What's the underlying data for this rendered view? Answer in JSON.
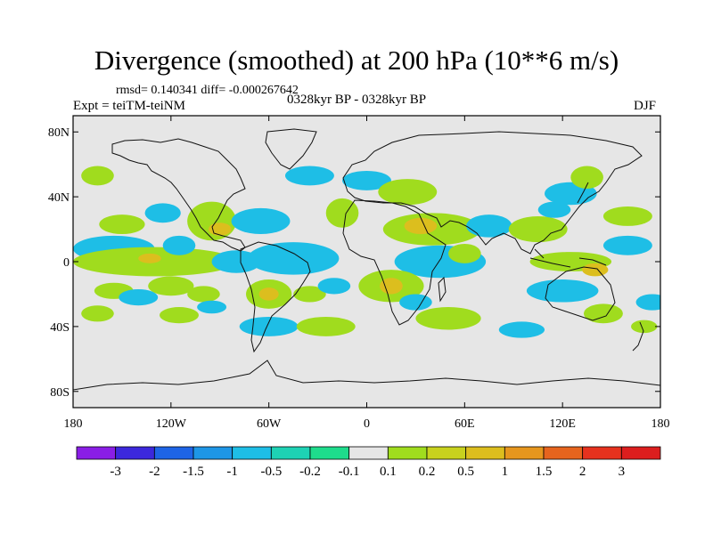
{
  "chart_data": {
    "type": "heatmap",
    "title": "Divergence (smoothed) at 200 hPa (10**6 m/s)",
    "stats": "rmsd= 0.140341 diff= -0.000267642",
    "experiment": "Expt = teiTM-teiNM",
    "period": "0328kyr BP - 0328kyr BP",
    "season": "DJF",
    "x_ticks": [
      "180",
      "120W",
      "60W",
      "0",
      "60E",
      "120E",
      "180"
    ],
    "y_ticks": [
      "80N",
      "40N",
      "0",
      "40S",
      "80S"
    ],
    "xlim": [
      -180,
      180
    ],
    "ylim": [
      -90,
      90
    ],
    "x_tick_values": [
      -180,
      -120,
      -60,
      0,
      60,
      120,
      180
    ],
    "y_tick_values": [
      80,
      40,
      0,
      -40,
      -80
    ],
    "colorbar": {
      "labels": [
        "-3",
        "-2",
        "-1.5",
        "-1",
        "-0.5",
        "-0.2",
        "-0.1",
        "0.1",
        "0.2",
        "0.5",
        "1",
        "1.5",
        "2",
        "3"
      ],
      "colors": [
        "#8a1ee6",
        "#3c28dc",
        "#1e64e6",
        "#1e96e6",
        "#1ebee6",
        "#1ed2b4",
        "#1edc8c",
        "#e6e6e6",
        "#a0dc1e",
        "#c8d21e",
        "#dcbe1e",
        "#e6961e",
        "#e6641e",
        "#e6321e",
        "#dc1e1e"
      ]
    },
    "regions": [
      {
        "level": 0.2,
        "lon": -150,
        "lat": 23,
        "rx": 14,
        "ry": 6
      },
      {
        "level": -0.2,
        "lon": -155,
        "lat": 8,
        "rx": 25,
        "ry": 8
      },
      {
        "level": 0.2,
        "lon": -130,
        "lat": 0,
        "rx": 50,
        "ry": 9
      },
      {
        "level": 0.5,
        "lon": -133,
        "lat": 2,
        "rx": 7,
        "ry": 3
      },
      {
        "level": 0.2,
        "lon": -155,
        "lat": -18,
        "rx": 12,
        "ry": 5
      },
      {
        "level": 0.2,
        "lon": -120,
        "lat": -15,
        "rx": 14,
        "ry": 6
      },
      {
        "level": 0.2,
        "lon": -165,
        "lat": -32,
        "rx": 10,
        "ry": 5
      },
      {
        "level": -0.2,
        "lon": -140,
        "lat": -22,
        "rx": 12,
        "ry": 5
      },
      {
        "level": 0.2,
        "lon": -165,
        "lat": 53,
        "rx": 10,
        "ry": 6
      },
      {
        "level": -0.2,
        "lon": -125,
        "lat": 30,
        "rx": 11,
        "ry": 6
      },
      {
        "level": -0.2,
        "lon": -115,
        "lat": 10,
        "rx": 10,
        "ry": 6
      },
      {
        "level": 0.2,
        "lon": -95,
        "lat": 25,
        "rx": 15,
        "ry": 12
      },
      {
        "level": 0.5,
        "lon": -90,
        "lat": 20,
        "rx": 7,
        "ry": 4
      },
      {
        "level": -0.2,
        "lon": -65,
        "lat": 25,
        "rx": 18,
        "ry": 8
      },
      {
        "level": -0.2,
        "lon": -80,
        "lat": 0,
        "rx": 15,
        "ry": 7
      },
      {
        "level": -0.2,
        "lon": -45,
        "lat": 2,
        "rx": 28,
        "ry": 10
      },
      {
        "level": 0.2,
        "lon": -60,
        "lat": -20,
        "rx": 14,
        "ry": 9
      },
      {
        "level": 0.5,
        "lon": -60,
        "lat": -20,
        "rx": 6,
        "ry": 4
      },
      {
        "level": 0.2,
        "lon": -100,
        "lat": -20,
        "rx": 10,
        "ry": 5
      },
      {
        "level": 0.2,
        "lon": -115,
        "lat": -33,
        "rx": 12,
        "ry": 5
      },
      {
        "level": -0.2,
        "lon": -95,
        "lat": -28,
        "rx": 9,
        "ry": 4
      },
      {
        "level": -0.2,
        "lon": -60,
        "lat": -40,
        "rx": 18,
        "ry": 6
      },
      {
        "level": 0.2,
        "lon": -25,
        "lat": -40,
        "rx": 18,
        "ry": 6
      },
      {
        "level": 0.2,
        "lon": -35,
        "lat": -20,
        "rx": 10,
        "ry": 5
      },
      {
        "level": -0.2,
        "lon": -20,
        "lat": -15,
        "rx": 10,
        "ry": 5
      },
      {
        "level": 0.2,
        "lon": -15,
        "lat": 30,
        "rx": 10,
        "ry": 9
      },
      {
        "level": -0.2,
        "lon": -35,
        "lat": 53,
        "rx": 15,
        "ry": 6
      },
      {
        "level": -0.2,
        "lon": 0,
        "lat": 50,
        "rx": 15,
        "ry": 6
      },
      {
        "level": 0.2,
        "lon": 25,
        "lat": 43,
        "rx": 18,
        "ry": 8
      },
      {
        "level": 0.2,
        "lon": 40,
        "lat": 20,
        "rx": 30,
        "ry": 10
      },
      {
        "level": 0.5,
        "lon": 33,
        "lat": 22,
        "rx": 10,
        "ry": 5
      },
      {
        "level": -0.2,
        "lon": 45,
        "lat": 0,
        "rx": 28,
        "ry": 10
      },
      {
        "level": 0.2,
        "lon": 15,
        "lat": -15,
        "rx": 20,
        "ry": 10
      },
      {
        "level": 0.5,
        "lon": 15,
        "lat": -15,
        "rx": 7,
        "ry": 5
      },
      {
        "level": 0.2,
        "lon": 50,
        "lat": -35,
        "rx": 20,
        "ry": 7
      },
      {
        "level": -0.2,
        "lon": 30,
        "lat": -25,
        "rx": 10,
        "ry": 5
      },
      {
        "level": -0.2,
        "lon": 75,
        "lat": 22,
        "rx": 14,
        "ry": 7
      },
      {
        "level": 0.2,
        "lon": 105,
        "lat": 20,
        "rx": 18,
        "ry": 8
      },
      {
        "level": -0.2,
        "lon": 115,
        "lat": 32,
        "rx": 10,
        "ry": 5
      },
      {
        "level": -0.2,
        "lon": 125,
        "lat": 42,
        "rx": 16,
        "ry": 7
      },
      {
        "level": 0.2,
        "lon": 135,
        "lat": 52,
        "rx": 10,
        "ry": 7
      },
      {
        "level": 0.2,
        "lon": 160,
        "lat": 28,
        "rx": 15,
        "ry": 6
      },
      {
        "level": -0.2,
        "lon": 160,
        "lat": 10,
        "rx": 15,
        "ry": 6
      },
      {
        "level": 0.2,
        "lon": 125,
        "lat": 0,
        "rx": 25,
        "ry": 6
      },
      {
        "level": -0.2,
        "lon": 120,
        "lat": -18,
        "rx": 22,
        "ry": 7
      },
      {
        "level": 0.5,
        "lon": 140,
        "lat": -5,
        "rx": 8,
        "ry": 4
      },
      {
        "level": 0.2,
        "lon": 145,
        "lat": -32,
        "rx": 12,
        "ry": 6
      },
      {
        "level": -0.2,
        "lon": 175,
        "lat": -25,
        "rx": 10,
        "ry": 5
      },
      {
        "level": 0.2,
        "lon": 170,
        "lat": -40,
        "rx": 8,
        "ry": 4
      },
      {
        "level": -0.2,
        "lon": 95,
        "lat": -42,
        "rx": 14,
        "ry": 5
      },
      {
        "level": 0.2,
        "lon": 60,
        "lat": 5,
        "rx": 10,
        "ry": 6
      }
    ]
  }
}
